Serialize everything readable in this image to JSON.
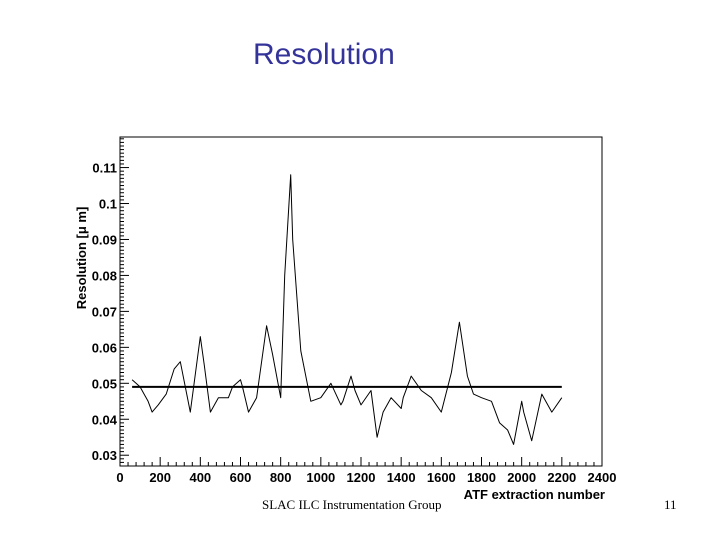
{
  "slide": {
    "title": "Resolution",
    "footer": "SLAC ILC Instrumentation Group",
    "page_number": "11"
  },
  "chart_data": {
    "type": "line",
    "title": "",
    "xlabel": "ATF extraction number",
    "ylabel": "Resolution [μ m]",
    "xlim": [
      0,
      2400
    ],
    "ylim": [
      0.027,
      0.1185
    ],
    "x_ticks": [
      0,
      200,
      400,
      600,
      800,
      1000,
      1200,
      1400,
      1600,
      1800,
      2000,
      2200,
      2400
    ],
    "y_ticks": [
      0.03,
      0.04,
      0.05,
      0.06,
      0.07,
      0.08,
      0.09,
      0.1,
      0.11
    ],
    "x_tick_labels": [
      "0",
      "200",
      "400",
      "600",
      "800",
      "1000",
      "1200",
      "1400",
      "1600",
      "1800",
      "2000",
      "2200",
      "2400"
    ],
    "y_tick_labels": [
      "0.03",
      "0.04",
      "0.05",
      "0.06",
      "0.07",
      "0.08",
      "0.09",
      "0.1",
      "0.11"
    ],
    "grid": false,
    "legend": "none",
    "series": [
      {
        "x": [
          60,
          100,
          120,
          140,
          160,
          190,
          230,
          270,
          300,
          350,
          400,
          420,
          450,
          490,
          540,
          560,
          600,
          610,
          640,
          680,
          730,
          760,
          800,
          820,
          850,
          860,
          900,
          950,
          1000,
          1050,
          1100,
          1110,
          1150,
          1170,
          1200,
          1250,
          1280,
          1310,
          1350,
          1400,
          1410,
          1450,
          1500,
          1550,
          1600,
          1650,
          1690,
          1730,
          1760,
          1800,
          1850,
          1890,
          1930,
          1960,
          2000,
          2010,
          2050,
          2100,
          2110,
          2150,
          2200
        ],
        "y": [
          0.051,
          0.049,
          0.047,
          0.045,
          0.042,
          0.044,
          0.047,
          0.054,
          0.056,
          0.042,
          0.063,
          0.055,
          0.042,
          0.046,
          0.046,
          0.049,
          0.051,
          0.049,
          0.042,
          0.046,
          0.066,
          0.058,
          0.046,
          0.08,
          0.108,
          0.09,
          0.059,
          0.045,
          0.046,
          0.05,
          0.044,
          0.045,
          0.052,
          0.048,
          0.044,
          0.048,
          0.035,
          0.042,
          0.046,
          0.043,
          0.046,
          0.052,
          0.048,
          0.046,
          0.042,
          0.053,
          0.067,
          0.052,
          0.047,
          0.046,
          0.045,
          0.039,
          0.037,
          0.033,
          0.045,
          0.042,
          0.034,
          0.047,
          0.046,
          0.042,
          0.046
        ]
      },
      {
        "x": [
          60,
          2200
        ],
        "y": [
          0.049,
          0.049
        ]
      }
    ]
  },
  "colors": {
    "title": "#333399",
    "frame": "#000000",
    "line": "#000000"
  }
}
